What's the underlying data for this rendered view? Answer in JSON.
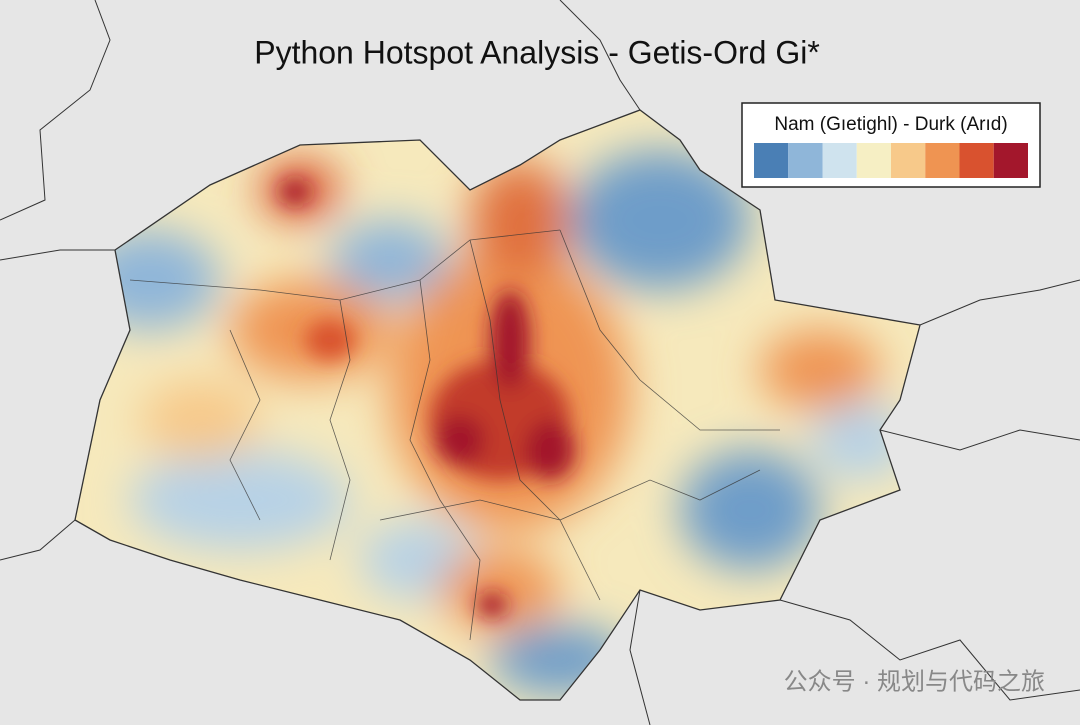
{
  "title": "Python Hotspot Analysis - Getis-Ord Gi*",
  "legend": {
    "title": "Nam (Gıetighl) - Durk (Arıd)",
    "colors": [
      "#4a7fb5",
      "#8fb6d9",
      "#cfe3ee",
      "#f6efc4",
      "#f7c98a",
      "#ef9452",
      "#d9522f",
      "#a3172c"
    ]
  },
  "watermark": "公众号 · 规划与代码之旅"
}
